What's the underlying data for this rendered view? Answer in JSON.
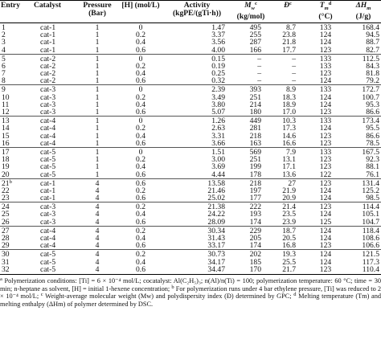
{
  "columns": [
    {
      "label": "Entry",
      "sup": ""
    },
    {
      "label": "Catalyst",
      "sup": ""
    },
    {
      "label": "Pressure (Bar)",
      "sup": ""
    },
    {
      "label": "[H] (mol/L)",
      "sup": ""
    },
    {
      "label": "Activity (kgPE/(gTi·h))",
      "sup": ""
    },
    {
      "label": "Mw (kg/mol)",
      "sup": "c"
    },
    {
      "label": "Đ",
      "sup": "c"
    },
    {
      "label": "Tm (°C)",
      "sup": "d"
    },
    {
      "label": "ΔHm (J/g)",
      "sup": "d"
    }
  ],
  "header": {
    "entry": "Entry",
    "catalyst": "Catalyst",
    "pressure_l1": "Pressure",
    "pressure_l2": "(Bar)",
    "h_conc": "[H] (mol/L)",
    "activity_l1": "Activity",
    "activity_l2": "(kgPE/(gTi·h))",
    "mw_sym": "M",
    "mw_sub": "w",
    "mw_sup": "c",
    "mw_unit": "(kg/mol)",
    "d_sym": "Đ",
    "d_sup": "c",
    "tm_sym": "T",
    "tm_sub": "m",
    "tm_sup": "d",
    "tm_unit": "(°C)",
    "hm_sym": "ΔH",
    "hm_sub": "m",
    "hm_unit": "(J/g)"
  },
  "groups": [
    {
      "rows": [
        {
          "entry": "1",
          "entry_sup": "",
          "catalyst": "cat-1",
          "pressure": "1",
          "h": "0",
          "activity": "1.47",
          "mw": "495",
          "d": "8.7",
          "tm": "133",
          "hm": "168.4"
        },
        {
          "entry": "2",
          "entry_sup": "",
          "catalyst": "cat-1",
          "pressure": "1",
          "h": "0.2",
          "activity": "3.37",
          "mw": "255",
          "d": "23.8",
          "tm": "124",
          "hm": "94.5"
        },
        {
          "entry": "3",
          "entry_sup": "",
          "catalyst": "cat-1",
          "pressure": "1",
          "h": "0.4",
          "activity": "3.56",
          "mw": "287",
          "d": "21.8",
          "tm": "124",
          "hm": "88.7"
        },
        {
          "entry": "4",
          "entry_sup": "",
          "catalyst": "cat-1",
          "pressure": "1",
          "h": "0.6",
          "activity": "4.00",
          "mw": "166",
          "d": "17.7",
          "tm": "123",
          "hm": "82.7"
        }
      ]
    },
    {
      "rows": [
        {
          "entry": "5",
          "entry_sup": "",
          "catalyst": "cat-2",
          "pressure": "1",
          "h": "0",
          "activity": "0.15",
          "mw": "–",
          "d": "–",
          "tm": "133",
          "hm": "112.5"
        },
        {
          "entry": "6",
          "entry_sup": "",
          "catalyst": "cat-2",
          "pressure": "1",
          "h": "0.2",
          "activity": "0.19",
          "mw": "–",
          "d": "–",
          "tm": "133",
          "hm": "84.3"
        },
        {
          "entry": "7",
          "entry_sup": "",
          "catalyst": "cat-2",
          "pressure": "1",
          "h": "0.4",
          "activity": "0.25",
          "mw": "–",
          "d": "–",
          "tm": "123",
          "hm": "81.8"
        },
        {
          "entry": "8",
          "entry_sup": "",
          "catalyst": "cat-2",
          "pressure": "1",
          "h": "0.6",
          "activity": "0.32",
          "mw": "–",
          "d": "–",
          "tm": "124",
          "hm": "79.2"
        }
      ]
    },
    {
      "rows": [
        {
          "entry": "9",
          "entry_sup": "",
          "catalyst": "cat-3",
          "pressure": "1",
          "h": "0",
          "activity": "2.39",
          "mw": "393",
          "d": "8.9",
          "tm": "133",
          "hm": "172.7"
        },
        {
          "entry": "10",
          "entry_sup": "",
          "catalyst": "cat-3",
          "pressure": "1",
          "h": "0.2",
          "activity": "3.49",
          "mw": "251",
          "d": "18.3",
          "tm": "124",
          "hm": "100.7"
        },
        {
          "entry": "11",
          "entry_sup": "",
          "catalyst": "cat-3",
          "pressure": "1",
          "h": "0.4",
          "activity": "3.80",
          "mw": "214",
          "d": "18.9",
          "tm": "124",
          "hm": "95.3"
        },
        {
          "entry": "12",
          "entry_sup": "",
          "catalyst": "cat-3",
          "pressure": "1",
          "h": "0.6",
          "activity": "5.07",
          "mw": "180",
          "d": "17.0",
          "tm": "123",
          "hm": "86.6"
        }
      ]
    },
    {
      "rows": [
        {
          "entry": "13",
          "entry_sup": "",
          "catalyst": "cat-4",
          "pressure": "1",
          "h": "0",
          "activity": "1.26",
          "mw": "449",
          "d": "10.3",
          "tm": "133",
          "hm": "173.4"
        },
        {
          "entry": "14",
          "entry_sup": "",
          "catalyst": "cat-4",
          "pressure": "1",
          "h": "0.2",
          "activity": "2.63",
          "mw": "281",
          "d": "17.3",
          "tm": "124",
          "hm": "95.5"
        },
        {
          "entry": "15",
          "entry_sup": "",
          "catalyst": "cat-4",
          "pressure": "1",
          "h": "0.4",
          "activity": "3.31",
          "mw": "218",
          "d": "14.6",
          "tm": "123",
          "hm": "86.6"
        },
        {
          "entry": "16",
          "entry_sup": "",
          "catalyst": "cat-4",
          "pressure": "1",
          "h": "0.6",
          "activity": "3.66",
          "mw": "163",
          "d": "16.6",
          "tm": "123",
          "hm": "78.5"
        }
      ]
    },
    {
      "rows": [
        {
          "entry": "17",
          "entry_sup": "",
          "catalyst": "cat-5",
          "pressure": "1",
          "h": "0",
          "activity": "1.51",
          "mw": "569",
          "d": "7.9",
          "tm": "133",
          "hm": "167.5"
        },
        {
          "entry": "18",
          "entry_sup": "",
          "catalyst": "cat-5",
          "pressure": "1",
          "h": "0.2",
          "activity": "3.00",
          "mw": "251",
          "d": "13.1",
          "tm": "123",
          "hm": "92.3"
        },
        {
          "entry": "19",
          "entry_sup": "",
          "catalyst": "cat-5",
          "pressure": "1",
          "h": "0.4",
          "activity": "3.69",
          "mw": "199",
          "d": "17.1",
          "tm": "123",
          "hm": "88.1"
        },
        {
          "entry": "20",
          "entry_sup": "",
          "catalyst": "cat-5",
          "pressure": "1",
          "h": "0.6",
          "activity": "4.44",
          "mw": "178",
          "d": "13.6",
          "tm": "122",
          "hm": "76.1"
        }
      ]
    },
    {
      "rows": [
        {
          "entry": "21",
          "entry_sup": "b",
          "catalyst": "cat-1",
          "pressure": "4",
          "h": "0.6",
          "activity": "13.58",
          "mw": "218",
          "d": "27",
          "tm": "123",
          "hm": "131.4"
        },
        {
          "entry": "22",
          "entry_sup": "",
          "catalyst": "cat-1",
          "pressure": "4",
          "h": "0.2",
          "activity": "21.46",
          "mw": "197",
          "d": "21.9",
          "tm": "124",
          "hm": "125.2"
        },
        {
          "entry": "23",
          "entry_sup": "",
          "catalyst": "cat-1",
          "pressure": "4",
          "h": "0.6",
          "activity": "25.02",
          "mw": "177",
          "d": "20.9",
          "tm": "124",
          "hm": "98.5"
        }
      ]
    },
    {
      "rows": [
        {
          "entry": "24",
          "entry_sup": "",
          "catalyst": "cat-3",
          "pressure": "4",
          "h": "0.2",
          "activity": "21.38",
          "mw": "222",
          "d": "21.4",
          "tm": "123",
          "hm": "114.4"
        },
        {
          "entry": "25",
          "entry_sup": "",
          "catalyst": "cat-3",
          "pressure": "4",
          "h": "0.4",
          "activity": "24.22",
          "mw": "193",
          "d": "23.5",
          "tm": "124",
          "hm": "105.1"
        },
        {
          "entry": "26",
          "entry_sup": "",
          "catalyst": "cat-3",
          "pressure": "4",
          "h": "0.6",
          "activity": "28.09",
          "mw": "174",
          "d": "23.9",
          "tm": "125",
          "hm": "104.7"
        }
      ]
    },
    {
      "rows": [
        {
          "entry": "27",
          "entry_sup": "",
          "catalyst": "cat-4",
          "pressure": "4",
          "h": "0.2",
          "activity": "30.34",
          "mw": "229",
          "d": "18.7",
          "tm": "124",
          "hm": "118.4"
        },
        {
          "entry": "28",
          "entry_sup": "",
          "catalyst": "cat-4",
          "pressure": "4",
          "h": "0.4",
          "activity": "31.43",
          "mw": "205",
          "d": "20.5",
          "tm": "124",
          "hm": "108.6"
        },
        {
          "entry": "29",
          "entry_sup": "",
          "catalyst": "cat-4",
          "pressure": "4",
          "h": "0.6",
          "activity": "33.17",
          "mw": "174",
          "d": "16.8",
          "tm": "123",
          "hm": "106.6"
        }
      ]
    },
    {
      "rows": [
        {
          "entry": "30",
          "entry_sup": "",
          "catalyst": "cat-5",
          "pressure": "4",
          "h": "0.2",
          "activity": "30.73",
          "mw": "202",
          "d": "19.3",
          "tm": "124",
          "hm": "121.5"
        },
        {
          "entry": "31",
          "entry_sup": "",
          "catalyst": "cat-5",
          "pressure": "4",
          "h": "0.4",
          "activity": "34.17",
          "mw": "185",
          "d": "25.5",
          "tm": "124",
          "hm": "117.3"
        },
        {
          "entry": "32",
          "entry_sup": "",
          "catalyst": "cat-5",
          "pressure": "4",
          "h": "0.6",
          "activity": "34.47",
          "mw": "170",
          "d": "21.7",
          "tm": "123",
          "hm": "110.4"
        }
      ]
    }
  ],
  "footnotes": {
    "a_mark": "a",
    "a_text": "Polymerization conditions: [Ti] = 6 × 10⁻⁴ mol/L; cocatalyst: Al(C₂H₅)₃; n(Al)/n(Ti) = 100; polymerization temperature: 60 °C; time = 30 min; n-heptane as solvent, [H] = initial 1-hexene concentration;",
    "b_mark": "b",
    "b_text": "For polymerization runs under 4 bar ethylene pressure, [Ti] was reduced to 2 × 10⁻⁴ mol/L;",
    "c_mark": "c",
    "c_text": "Weight-average molecular weight (Mw) and polydispersity index (Đ) determined by GPC;",
    "d_mark": "d",
    "d_text": "Melting temperature (Tm) and melting enthalpy (ΔHm) of polymer determined by DSC."
  }
}
